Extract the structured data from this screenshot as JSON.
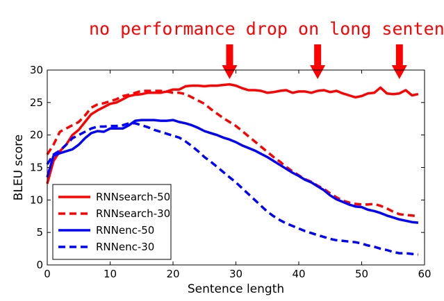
{
  "headline": "no performance drop on long sentenc",
  "colors": {
    "red": "#ff0000",
    "blue": "#0000ff",
    "arrow": "#ff0000"
  },
  "arrows_at_x": [
    29,
    43,
    56
  ],
  "chart_data": {
    "type": "line",
    "title": "",
    "xlabel": "Sentence length",
    "ylabel": "BLEU score",
    "xlim": [
      0,
      60
    ],
    "ylim": [
      0,
      30
    ],
    "xticks": [
      0,
      10,
      20,
      30,
      40,
      50,
      60
    ],
    "yticks": [
      0,
      5,
      10,
      15,
      20,
      25,
      30
    ],
    "grid": false,
    "legend_position": "lower-left",
    "x": [
      0,
      1,
      2,
      3,
      4,
      5,
      6,
      7,
      8,
      9,
      10,
      11,
      12,
      13,
      14,
      15,
      16,
      17,
      18,
      19,
      20,
      21,
      22,
      23,
      24,
      25,
      26,
      27,
      28,
      29,
      30,
      31,
      32,
      33,
      34,
      35,
      36,
      37,
      38,
      39,
      40,
      41,
      42,
      43,
      44,
      45,
      46,
      47,
      48,
      49,
      50,
      51,
      52,
      53,
      54,
      55,
      56,
      57,
      58,
      59
    ],
    "series": [
      {
        "name": "RNNsearch-50",
        "color": "#ff0000",
        "style": "solid",
        "values": [
          12.5,
          16.0,
          17.5,
          18.5,
          20.0,
          20.8,
          22.0,
          23.2,
          23.8,
          24.3,
          24.8,
          25.0,
          25.5,
          26.0,
          26.2,
          26.3,
          26.5,
          26.5,
          26.5,
          26.7,
          27.0,
          27.0,
          27.5,
          27.6,
          27.6,
          27.5,
          27.6,
          27.6,
          27.7,
          27.8,
          27.6,
          27.2,
          26.9,
          26.9,
          26.8,
          26.5,
          26.6,
          26.8,
          26.9,
          26.5,
          26.7,
          26.7,
          26.5,
          26.8,
          26.9,
          26.6,
          26.8,
          26.4,
          26.1,
          25.8,
          26.0,
          26.4,
          26.5,
          27.3,
          26.4,
          26.3,
          26.4,
          26.9,
          26.1,
          26.3
        ]
      },
      {
        "name": "RNNsearch-30",
        "color": "#ff0000",
        "style": "dashed",
        "values": [
          17.0,
          18.5,
          20.5,
          21.0,
          21.5,
          22.0,
          23.0,
          24.2,
          24.7,
          24.9,
          25.2,
          25.5,
          26.0,
          26.2,
          26.5,
          26.8,
          26.8,
          26.8,
          26.8,
          26.7,
          26.5,
          26.5,
          26.3,
          25.8,
          25.3,
          24.8,
          24.0,
          23.3,
          22.6,
          22.0,
          21.4,
          20.6,
          19.8,
          19.0,
          18.2,
          17.4,
          16.6,
          15.9,
          15.1,
          14.4,
          13.8,
          13.2,
          12.8,
          12.2,
          11.7,
          11.0,
          10.4,
          9.9,
          9.6,
          9.4,
          9.3,
          9.3,
          9.4,
          9.1,
          8.7,
          8.2,
          7.8,
          7.7,
          7.6,
          7.5
        ]
      },
      {
        "name": "RNNenc-50",
        "color": "#0000ff",
        "style": "solid",
        "values": [
          13.5,
          16.8,
          17.2,
          17.5,
          17.8,
          18.5,
          19.5,
          20.3,
          20.6,
          20.5,
          21.0,
          21.0,
          21.0,
          21.5,
          22.2,
          22.3,
          22.3,
          22.3,
          22.2,
          22.2,
          22.3,
          22.0,
          21.8,
          21.5,
          21.1,
          20.6,
          20.3,
          20.0,
          19.6,
          19.3,
          18.9,
          18.4,
          18.0,
          17.6,
          17.1,
          16.6,
          16.0,
          15.4,
          14.8,
          14.2,
          13.7,
          13.1,
          12.7,
          12.1,
          11.5,
          10.7,
          10.1,
          9.7,
          9.3,
          9.0,
          8.9,
          8.5,
          8.3,
          8.0,
          7.6,
          7.3,
          7.0,
          6.8,
          6.6,
          6.5
        ]
      },
      {
        "name": "RNNenc-30",
        "color": "#0000ff",
        "style": "dashed",
        "values": [
          15.5,
          17.0,
          17.6,
          18.5,
          19.5,
          20.0,
          20.5,
          21.0,
          21.3,
          21.3,
          21.4,
          21.4,
          21.5,
          21.8,
          21.8,
          21.5,
          21.2,
          20.8,
          20.5,
          20.2,
          19.9,
          19.6,
          19.0,
          18.3,
          17.5,
          16.6,
          15.9,
          15.1,
          14.3,
          13.5,
          12.7,
          11.8,
          10.9,
          10.0,
          9.1,
          8.2,
          7.5,
          6.9,
          6.4,
          6.0,
          5.6,
          5.2,
          4.9,
          4.6,
          4.3,
          4.0,
          3.8,
          3.7,
          3.6,
          3.5,
          3.3,
          3.0,
          2.8,
          2.5,
          2.3,
          2.0,
          1.8,
          1.8,
          1.7,
          1.6
        ]
      }
    ]
  }
}
